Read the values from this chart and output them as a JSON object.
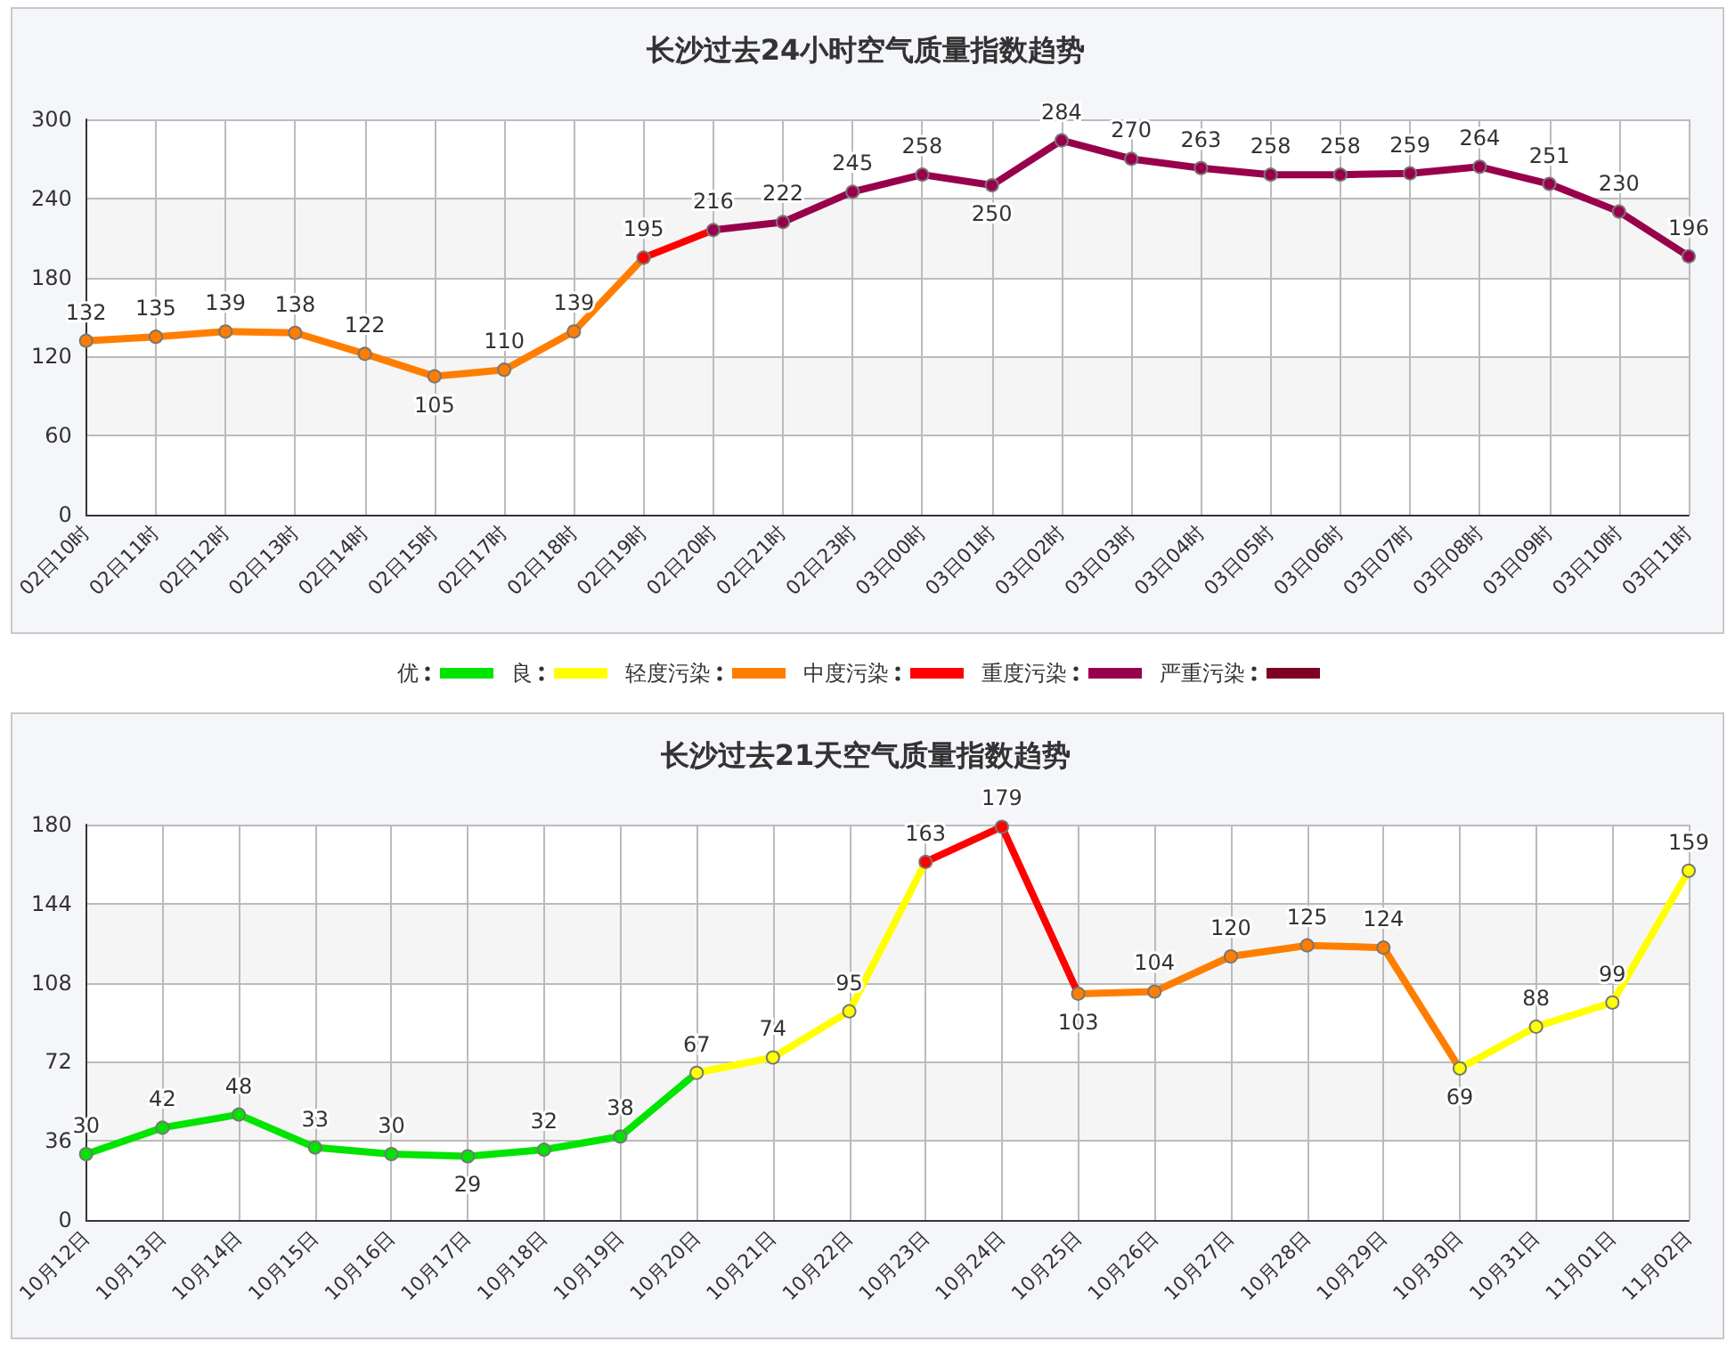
{
  "chart_data": [
    {
      "type": "line",
      "title": "长沙过去24小时空气质量指数趋势",
      "categories": [
        "02日10时",
        "02日11时",
        "02日12时",
        "02日13时",
        "02日14时",
        "02日15时",
        "02日17时",
        "02日18时",
        "02日19时",
        "02日20时",
        "02日21时",
        "02日23时",
        "03日00时",
        "03日01时",
        "03日02时",
        "03日03时",
        "03日04时",
        "03日05时",
        "03日06时",
        "03日07时",
        "03日08时",
        "03日09时",
        "03日10时",
        "03日11时"
      ],
      "series": [
        {
          "values": [
            132,
            135,
            139,
            138,
            122,
            105,
            110,
            139,
            195,
            216,
            222,
            245,
            258,
            250,
            284,
            270,
            263,
            258,
            258,
            259,
            264,
            251,
            230,
            196
          ],
          "colors": [
            "#ff7e00",
            "#ff7e00",
            "#ff7e00",
            "#ff7e00",
            "#ff7e00",
            "#ff7e00",
            "#ff7e00",
            "#ff7e00",
            "#ff0000",
            "#99004c",
            "#99004c",
            "#99004c",
            "#99004c",
            "#99004c",
            "#99004c",
            "#99004c",
            "#99004c",
            "#99004c",
            "#99004c",
            "#99004c",
            "#99004c",
            "#99004c",
            "#99004c",
            "#99004c"
          ]
        }
      ],
      "ylim": [
        0,
        300
      ],
      "yticks": [
        0,
        60,
        120,
        180,
        240,
        300
      ],
      "grid": true,
      "marker": "circle",
      "line_style": "solid",
      "data_labels": true
    },
    {
      "type": "other",
      "categories": [
        "优",
        "良",
        "轻度污染",
        "中度污染",
        "重度污染",
        "严重污染"
      ],
      "colors": [
        "#00e400",
        "#ffff00",
        "#ff7e00",
        "#ff0000",
        "#99004c",
        "#7e0023"
      ]
    },
    {
      "type": "line",
      "title": "长沙过去21天空气质量指数趋势",
      "categories": [
        "10月12日",
        "10月13日",
        "10月14日",
        "10月15日",
        "10月16日",
        "10月17日",
        "10月18日",
        "10月19日",
        "10月20日",
        "10月21日",
        "10月22日",
        "10月23日",
        "10月24日",
        "10月25日",
        "10月26日",
        "10月27日",
        "10月28日",
        "10月29日",
        "10月30日",
        "10月31日",
        "11月01日",
        "11月02日"
      ],
      "series": [
        {
          "values": [
            30,
            42,
            48,
            33,
            30,
            29,
            32,
            38,
            67,
            74,
            95,
            163,
            179,
            103,
            104,
            120,
            125,
            124,
            69,
            88,
            99,
            159
          ],
          "colors": [
            "#00e400",
            "#00e400",
            "#00e400",
            "#00e400",
            "#00e400",
            "#00e400",
            "#00e400",
            "#00e400",
            "#ffff00",
            "#ffff00",
            "#ffff00",
            "#ff0000",
            "#ff0000",
            "#ff7e00",
            "#ff7e00",
            "#ff7e00",
            "#ff7e00",
            "#ff7e00",
            "#ffff00",
            "#ffff00",
            "#ffff00",
            "#ffff00"
          ]
        }
      ],
      "ylim": [
        0,
        180
      ],
      "yticks": [
        0,
        36,
        72,
        108,
        144,
        180
      ],
      "grid": true,
      "marker": "circle",
      "line_style": "solid",
      "data_labels": true
    }
  ]
}
